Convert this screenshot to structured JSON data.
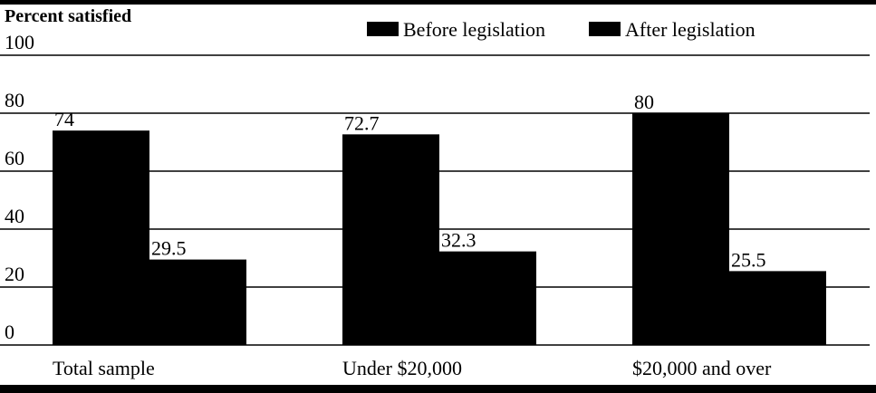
{
  "chart_data": {
    "type": "bar",
    "y_label": "Percent satisfied",
    "categories": [
      "Total sample",
      "Under $20,000",
      "$20,000 and over"
    ],
    "series": [
      {
        "name": "Before legislation",
        "color": "#000000",
        "values": [
          74,
          72.7,
          80
        ]
      },
      {
        "name": "After legislation",
        "color": "#000000",
        "values": [
          29.5,
          32.3,
          25.5
        ]
      }
    ],
    "ylim": [
      0,
      100
    ],
    "yticks": [
      0,
      20,
      40,
      60,
      80,
      100
    ],
    "grid": true,
    "legend": "top"
  }
}
